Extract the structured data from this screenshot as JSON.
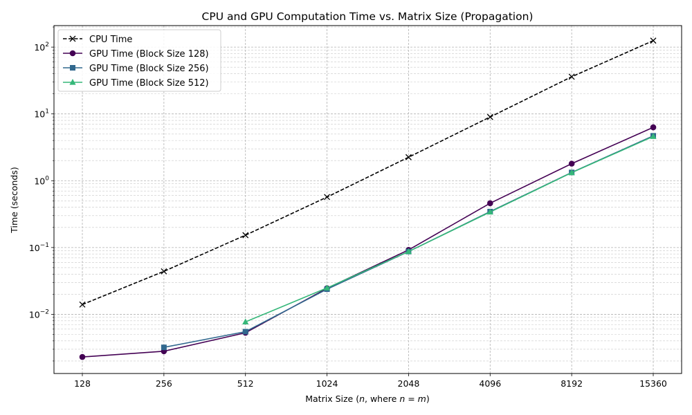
{
  "chart_data": {
    "type": "line",
    "title": "CPU and GPU Computation Time vs. Matrix Size (Propagation)",
    "xlabel_prefix": "Matrix Size (",
    "xlabel_n": "n",
    "xlabel_mid": ", where ",
    "xlabel_eq": "n = m",
    "xlabel_suffix": ")",
    "ylabel": "Time (seconds)",
    "x": [
      "128",
      "256",
      "512",
      "1024",
      "2048",
      "4096",
      "8192",
      "15360"
    ],
    "y_scale": "log",
    "ylim": [
      0.0013,
      210
    ],
    "y_tick_labels": [
      {
        "value": 0.01,
        "base": "10",
        "exp": "−2"
      },
      {
        "value": 0.1,
        "base": "10",
        "exp": "−1"
      },
      {
        "value": 1,
        "base": "10",
        "exp": "0"
      },
      {
        "value": 10,
        "base": "10",
        "exp": "1"
      },
      {
        "value": 100,
        "base": "10",
        "exp": "2"
      }
    ],
    "grid": true,
    "legend_position": "top-left",
    "series": [
      {
        "name": "CPU Time",
        "color": "#000000",
        "marker": "x",
        "dashed": true,
        "values": [
          0.014,
          0.044,
          0.153,
          0.57,
          2.25,
          9.0,
          36.0,
          125.0
        ]
      },
      {
        "name": "GPU Time (Block Size 128)",
        "color": "#440154",
        "marker": "circle",
        "dashed": false,
        "values": [
          0.0023,
          0.0028,
          0.0053,
          0.0245,
          0.092,
          0.46,
          1.8,
          6.3
        ]
      },
      {
        "name": "GPU Time (Block Size 256)",
        "color": "#31688e",
        "marker": "square",
        "dashed": false,
        "values": [
          null,
          0.0032,
          0.0055,
          0.0238,
          0.087,
          0.345,
          1.33,
          4.7
        ]
      },
      {
        "name": "GPU Time (Block Size 512)",
        "color": "#35b779",
        "marker": "triangle",
        "dashed": false,
        "values": [
          null,
          null,
          0.0077,
          0.0248,
          0.087,
          0.34,
          1.32,
          4.6
        ]
      }
    ]
  }
}
